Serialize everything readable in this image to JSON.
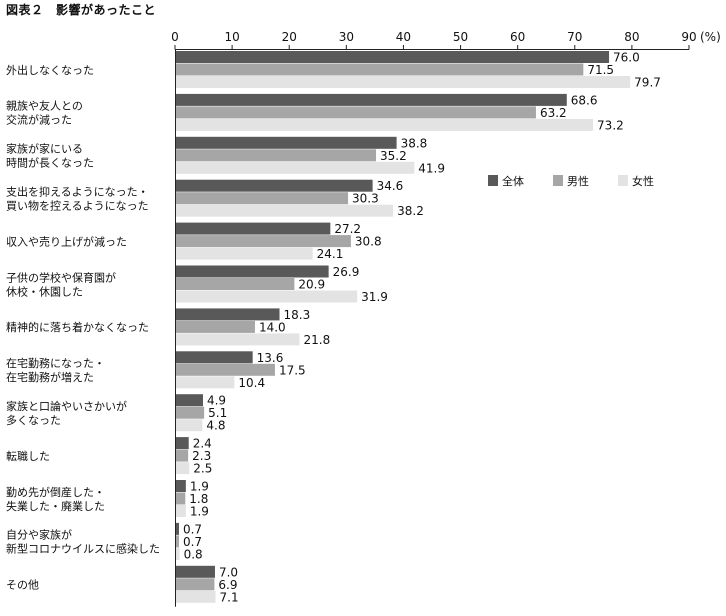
{
  "title": "図表２　影響があったこと",
  "chart_data": {
    "type": "bar",
    "orientation": "horizontal",
    "xlim": [
      0,
      90
    ],
    "ticks": [
      0,
      10,
      20,
      30,
      40,
      50,
      60,
      70,
      80,
      90
    ],
    "unit_label": "(%)",
    "grid": false,
    "legend_position": "right",
    "categories": [
      [
        "外出しなくなった"
      ],
      [
        "親族や友人との",
        "交流が減った"
      ],
      [
        "家族が家にいる",
        "時間が長くなった"
      ],
      [
        "支出を抑えるようになった・",
        "買い物を控えるようになった"
      ],
      [
        "収入や売り上げが減った"
      ],
      [
        "子供の学校や保育園が",
        "休校・休園した"
      ],
      [
        "精神的に落ち着かなくなった"
      ],
      [
        "在宅勤務になった・",
        "在宅勤務が増えた"
      ],
      [
        "家族と口論やいさかいが",
        "多くなった"
      ],
      [
        "転職した"
      ],
      [
        "勤め先が倒産した・",
        "失業した・廃業した"
      ],
      [
        "自分や家族が",
        "新型コロナウイルスに感染した"
      ],
      [
        "その他"
      ]
    ],
    "series": [
      {
        "name": "全体",
        "color": "#595959",
        "values": [
          76.0,
          68.6,
          38.8,
          34.6,
          27.2,
          26.9,
          18.3,
          13.6,
          4.9,
          2.4,
          1.9,
          0.7,
          7.0
        ]
      },
      {
        "name": "男性",
        "color": "#a6a6a6",
        "values": [
          71.5,
          63.2,
          35.2,
          30.3,
          30.8,
          20.9,
          14.0,
          17.5,
          5.1,
          2.3,
          1.8,
          0.7,
          6.9
        ]
      },
      {
        "name": "女性",
        "color": "#e3e3e3",
        "values": [
          79.7,
          73.2,
          41.9,
          38.2,
          24.1,
          31.9,
          21.8,
          10.4,
          4.8,
          2.5,
          1.9,
          0.8,
          7.1
        ]
      }
    ]
  }
}
